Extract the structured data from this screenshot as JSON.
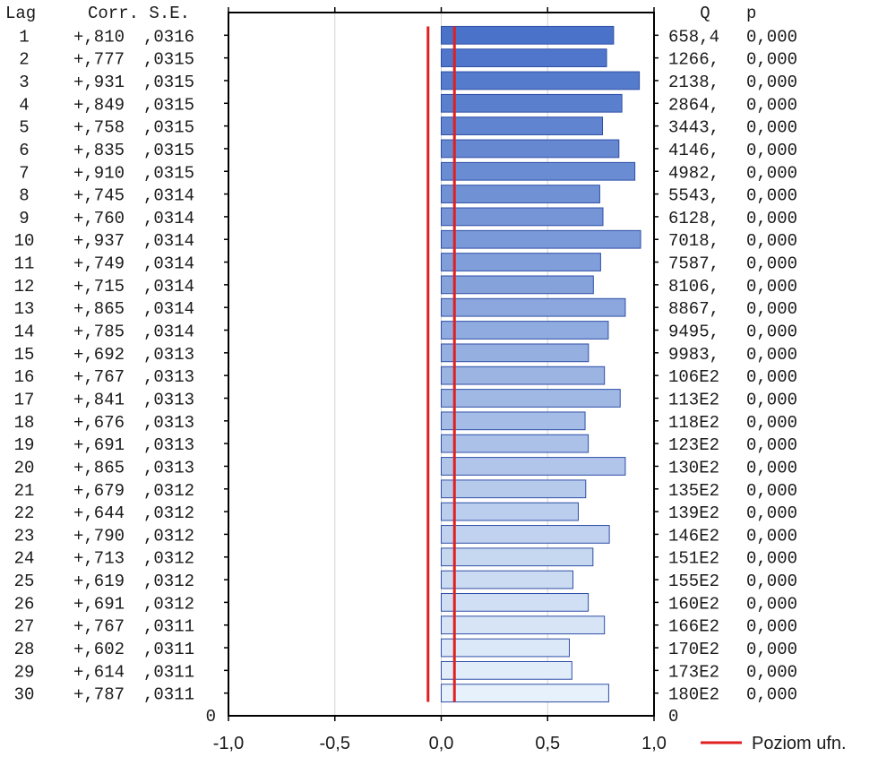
{
  "chart_data": {
    "type": "bar",
    "orientation": "horizontal",
    "headers": {
      "lag": "Lag",
      "corr_se": "Corr. S.E.",
      "q": "Q",
      "p": "p"
    },
    "lags": [
      "1",
      "2",
      "3",
      "4",
      "5",
      "6",
      "7",
      "8",
      "9",
      "10",
      "11",
      "12",
      "13",
      "14",
      "15",
      "16",
      "17",
      "18",
      "19",
      "20",
      "21",
      "22",
      "23",
      "24",
      "25",
      "26",
      "27",
      "28",
      "29",
      "30"
    ],
    "values": [
      0.81,
      0.777,
      0.931,
      0.849,
      0.758,
      0.835,
      0.91,
      0.745,
      0.76,
      0.937,
      0.749,
      0.715,
      0.865,
      0.785,
      0.692,
      0.767,
      0.841,
      0.676,
      0.691,
      0.865,
      0.679,
      0.644,
      0.79,
      0.713,
      0.619,
      0.691,
      0.767,
      0.602,
      0.614,
      0.787
    ],
    "corr_labels": [
      "+,810",
      "+,777",
      "+,931",
      "+,849",
      "+,758",
      "+,835",
      "+,910",
      "+,745",
      "+,760",
      "+,937",
      "+,749",
      "+,715",
      "+,865",
      "+,785",
      "+,692",
      "+,767",
      "+,841",
      "+,676",
      "+,691",
      "+,865",
      "+,679",
      "+,644",
      "+,790",
      "+,713",
      "+,619",
      "+,691",
      "+,767",
      "+,602",
      "+,614",
      "+,787"
    ],
    "se_labels": [
      ",0316",
      ",0315",
      ",0315",
      ",0315",
      ",0315",
      ",0315",
      ",0315",
      ",0314",
      ",0314",
      ",0314",
      ",0314",
      ",0314",
      ",0314",
      ",0314",
      ",0313",
      ",0313",
      ",0313",
      ",0313",
      ",0313",
      ",0313",
      ",0312",
      ",0312",
      ",0312",
      ",0312",
      ",0312",
      ",0312",
      ",0311",
      ",0311",
      ",0311",
      ",0311"
    ],
    "q_labels": [
      "658,4",
      "1266,",
      "2138,",
      "2864,",
      "3443,",
      "4146,",
      "4982,",
      "5543,",
      "6128,",
      "7018,",
      "7587,",
      "8106,",
      "8867,",
      "9495,",
      "9983,",
      "106E2",
      "113E2",
      "118E2",
      "123E2",
      "130E2",
      "135E2",
      "139E2",
      "146E2",
      "151E2",
      "155E2",
      "160E2",
      "166E2",
      "170E2",
      "173E2",
      "180E2"
    ],
    "p_labels": [
      "0,000",
      "0,000",
      "0,000",
      "0,000",
      "0,000",
      "0,000",
      "0,000",
      "0,000",
      "0,000",
      "0,000",
      "0,000",
      "0,000",
      "0,000",
      "0,000",
      "0,000",
      "0,000",
      "0,000",
      "0,000",
      "0,000",
      "0,000",
      "0,000",
      "0,000",
      "0,000",
      "0,000",
      "0,000",
      "0,000",
      "0,000",
      "0,000",
      "0,000",
      "0,000"
    ],
    "zero_row_left": "0",
    "zero_row_right": "0",
    "xlim": [
      -1.0,
      1.0
    ],
    "x_ticks": [
      -1.0,
      -0.5,
      0.0,
      0.5,
      1.0
    ],
    "x_tick_labels": [
      "-1,0",
      "-0,5",
      "0,0",
      "0,5",
      "1,0"
    ],
    "confidence_limits": {
      "lower": -0.062,
      "upper": 0.062,
      "label": "Poziom ufn."
    },
    "grid": true,
    "legend": "bottom-right",
    "colors": {
      "bar_top": "#4a72c8",
      "bar_bottom": "#e6f1fb",
      "bar_edge": "#2f4fa8",
      "confidence": "#e02020",
      "grid": "#d4d4d4",
      "frame": "#000000"
    }
  }
}
